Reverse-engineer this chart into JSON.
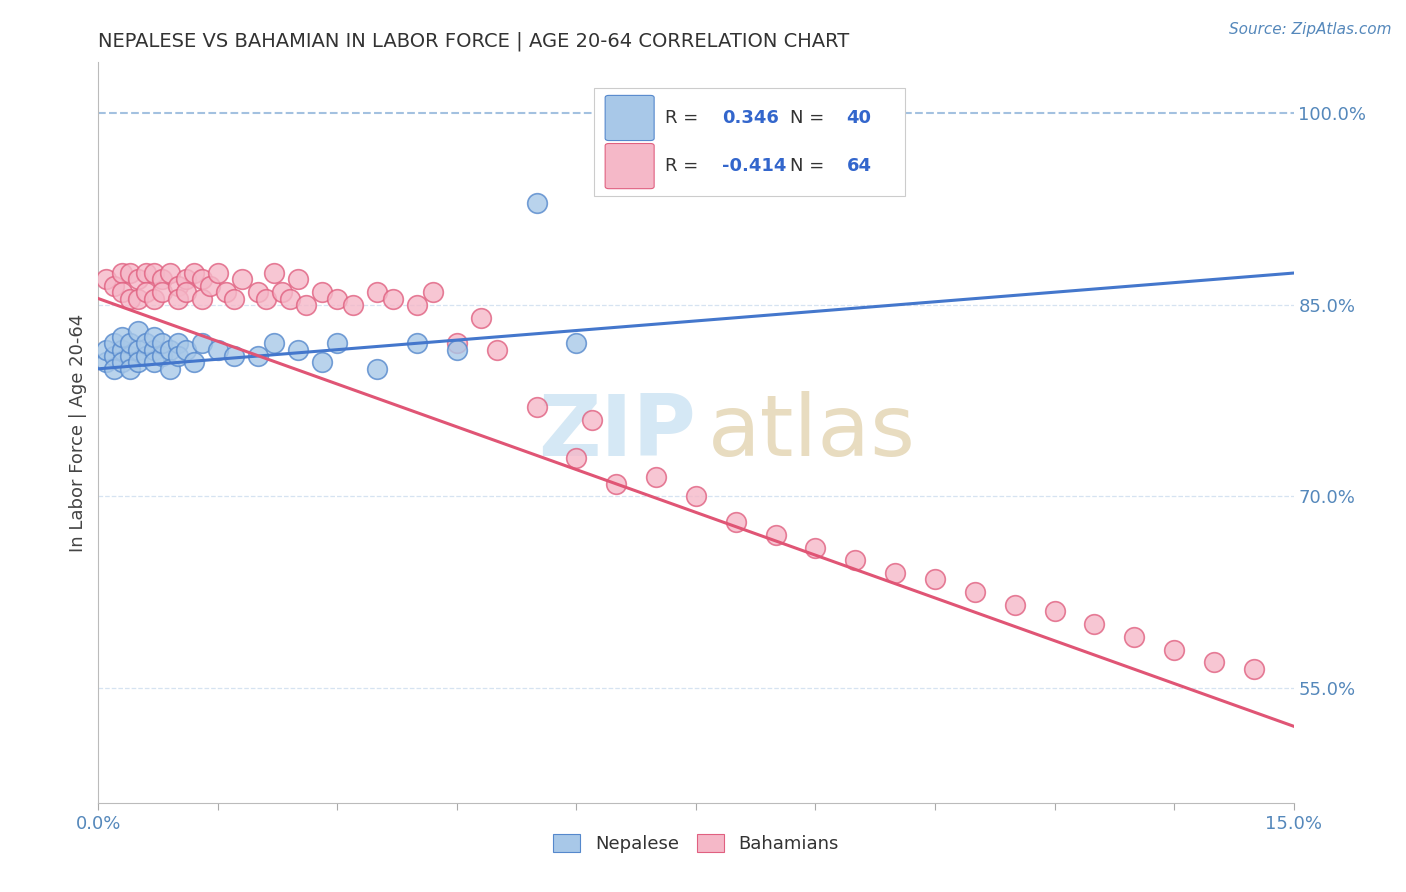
{
  "title": "NEPALESE VS BAHAMIAN IN LABOR FORCE | AGE 20-64 CORRELATION CHART",
  "source_text": "Source: ZipAtlas.com",
  "ylabel": "In Labor Force | Age 20-64",
  "xlim": [
    0.0,
    0.15
  ],
  "ylim": [
    0.46,
    1.04
  ],
  "nepalese_color": "#a8c8e8",
  "bahamian_color": "#f5b8c8",
  "nepalese_edge": "#5588cc",
  "bahamian_edge": "#e06080",
  "trend_blue": "#4477cc",
  "trend_pink": "#e05575",
  "trend_dashed_color": "#99bbdd",
  "grid_color": "#ccddee",
  "R_nepalese": 0.346,
  "N_nepalese": 40,
  "R_bahamian": -0.414,
  "N_bahamian": 64,
  "legend_color": "#3366cc",
  "tick_color": "#5588bb",
  "title_color": "#333333",
  "watermark_zip_color": "#d5e8f5",
  "watermark_atlas_color": "#e8dcc0",
  "nep_x": [
    0.001,
    0.001,
    0.002,
    0.002,
    0.002,
    0.003,
    0.003,
    0.003,
    0.004,
    0.004,
    0.004,
    0.005,
    0.005,
    0.005,
    0.006,
    0.006,
    0.007,
    0.007,
    0.007,
    0.008,
    0.008,
    0.009,
    0.009,
    0.01,
    0.01,
    0.011,
    0.012,
    0.013,
    0.015,
    0.017,
    0.02,
    0.022,
    0.025,
    0.028,
    0.03,
    0.035,
    0.04,
    0.045,
    0.055,
    0.06
  ],
  "nep_y": [
    0.805,
    0.815,
    0.81,
    0.82,
    0.8,
    0.815,
    0.805,
    0.825,
    0.81,
    0.82,
    0.8,
    0.815,
    0.805,
    0.83,
    0.81,
    0.82,
    0.815,
    0.805,
    0.825,
    0.81,
    0.82,
    0.815,
    0.8,
    0.82,
    0.81,
    0.815,
    0.805,
    0.82,
    0.815,
    0.81,
    0.81,
    0.82,
    0.815,
    0.805,
    0.82,
    0.8,
    0.82,
    0.815,
    0.93,
    0.82
  ],
  "bah_x": [
    0.001,
    0.002,
    0.003,
    0.003,
    0.004,
    0.004,
    0.005,
    0.005,
    0.006,
    0.006,
    0.007,
    0.007,
    0.008,
    0.008,
    0.009,
    0.01,
    0.01,
    0.011,
    0.011,
    0.012,
    0.013,
    0.013,
    0.014,
    0.015,
    0.016,
    0.017,
    0.018,
    0.02,
    0.021,
    0.022,
    0.023,
    0.024,
    0.025,
    0.026,
    0.028,
    0.03,
    0.032,
    0.035,
    0.037,
    0.04,
    0.042,
    0.045,
    0.048,
    0.05,
    0.055,
    0.06,
    0.062,
    0.065,
    0.07,
    0.075,
    0.08,
    0.085,
    0.09,
    0.095,
    0.1,
    0.105,
    0.11,
    0.115,
    0.12,
    0.125,
    0.13,
    0.135,
    0.14,
    0.145
  ],
  "bah_y": [
    0.87,
    0.865,
    0.875,
    0.86,
    0.875,
    0.855,
    0.87,
    0.855,
    0.875,
    0.86,
    0.875,
    0.855,
    0.87,
    0.86,
    0.875,
    0.865,
    0.855,
    0.87,
    0.86,
    0.875,
    0.855,
    0.87,
    0.865,
    0.875,
    0.86,
    0.855,
    0.87,
    0.86,
    0.855,
    0.875,
    0.86,
    0.855,
    0.87,
    0.85,
    0.86,
    0.855,
    0.85,
    0.86,
    0.855,
    0.85,
    0.86,
    0.82,
    0.84,
    0.815,
    0.77,
    0.73,
    0.76,
    0.71,
    0.715,
    0.7,
    0.68,
    0.67,
    0.66,
    0.65,
    0.64,
    0.635,
    0.625,
    0.615,
    0.61,
    0.6,
    0.59,
    0.58,
    0.57,
    0.565
  ]
}
